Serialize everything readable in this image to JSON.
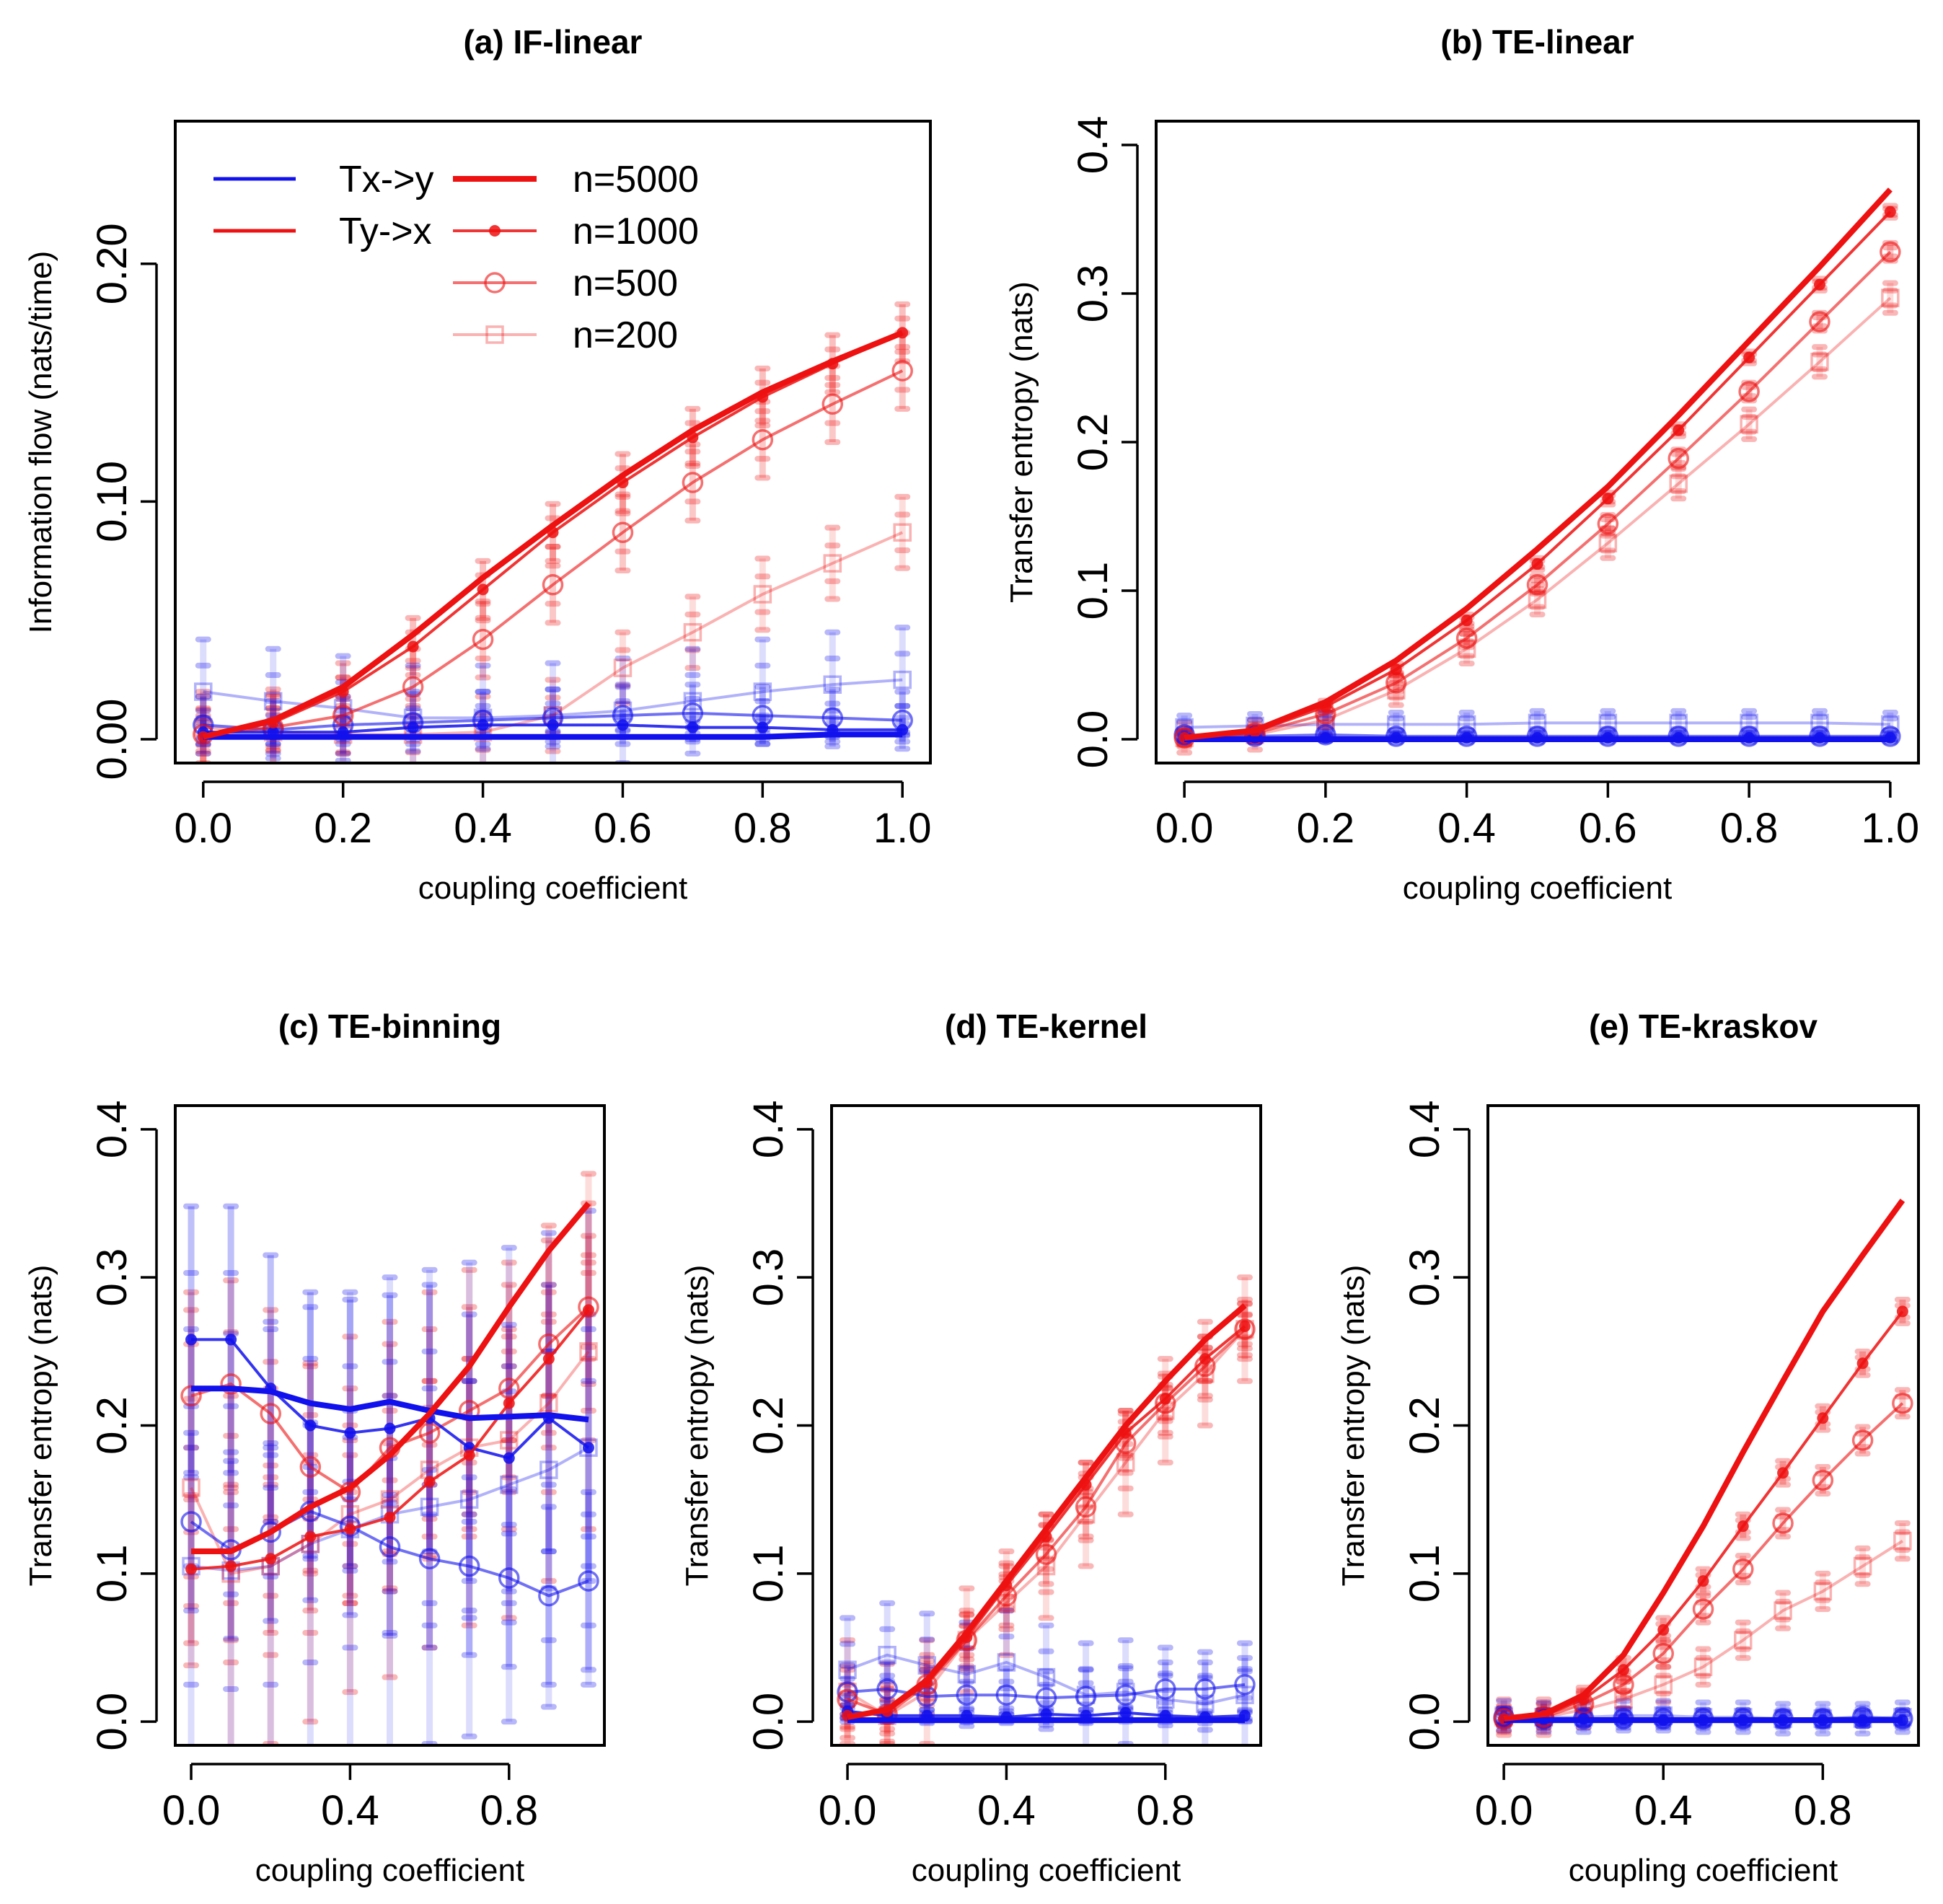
{
  "colors": {
    "red": "#ee1111",
    "blue": "#1111ee",
    "axis": "#000000"
  },
  "legend": {
    "direction_labels": [
      "Tx->y",
      "Ty->x"
    ],
    "size_labels": [
      "n=5000",
      "n=1000",
      "n=500",
      "n=200"
    ]
  },
  "chart_data": [
    {
      "id": "a",
      "type": "line",
      "title": "(a) IF-linear",
      "xlabel": "coupling coefficient",
      "ylabel": "Information flow (nats/time)",
      "xlim": [
        0,
        1
      ],
      "ylim": [
        0,
        0.25
      ],
      "xticks": [
        "0.0",
        "0.2",
        "0.4",
        "0.6",
        "0.8",
        "1.0"
      ],
      "yticks": [
        "0.00",
        "0.10",
        "0.20"
      ],
      "x": [
        0,
        0.1,
        0.2,
        0.3,
        0.4,
        0.5,
        0.6,
        0.7,
        0.8,
        0.9,
        1.0
      ],
      "series": [
        {
          "name": "Ty->x n=5000",
          "values": [
            0.001,
            0.008,
            0.022,
            0.044,
            0.068,
            0.09,
            0.111,
            0.13,
            0.146,
            0.159,
            0.171
          ]
        },
        {
          "name": "Ty->x n=1000",
          "values": [
            0.001,
            0.007,
            0.02,
            0.039,
            0.063,
            0.087,
            0.108,
            0.127,
            0.144,
            0.158,
            0.171
          ],
          "err": 0.012
        },
        {
          "name": "Ty->x n=500",
          "values": [
            0.002,
            0.005,
            0.01,
            0.022,
            0.042,
            0.065,
            0.087,
            0.108,
            0.126,
            0.141,
            0.155
          ],
          "err": 0.016
        },
        {
          "name": "Ty->x n=200",
          "values": [
            0.005,
            0.003,
            0.002,
            0.002,
            0.003,
            0.01,
            0.03,
            0.045,
            0.061,
            0.074,
            0.087
          ],
          "err": 0.015
        },
        {
          "name": "Tx->y n=5000",
          "values": [
            0.001,
            0.001,
            0.001,
            0.001,
            0.001,
            0.001,
            0.001,
            0.001,
            0.001,
            0.002,
            0.002
          ]
        },
        {
          "name": "Tx->y n=1000",
          "values": [
            0.003,
            0.003,
            0.003,
            0.005,
            0.006,
            0.006,
            0.006,
            0.005,
            0.005,
            0.004,
            0.004
          ],
          "err": 0.005
        },
        {
          "name": "Tx->y n=500",
          "values": [
            0.006,
            0.004,
            0.006,
            0.007,
            0.008,
            0.009,
            0.01,
            0.011,
            0.01,
            0.009,
            0.008
          ],
          "err": 0.012
        },
        {
          "name": "Tx->y n=200",
          "values": [
            0.02,
            0.016,
            0.013,
            0.009,
            0.009,
            0.01,
            0.012,
            0.016,
            0.02,
            0.023,
            0.025
          ],
          "err": 0.022
        }
      ]
    },
    {
      "id": "b",
      "type": "line",
      "title": "(b) TE-linear",
      "xlabel": "coupling coefficient",
      "ylabel": "Transfer entropy (nats)",
      "xlim": [
        0,
        1
      ],
      "ylim": [
        0,
        0.4
      ],
      "xticks": [
        "0.0",
        "0.2",
        "0.4",
        "0.6",
        "0.8",
        "1.0"
      ],
      "yticks": [
        "0.0",
        "0.1",
        "0.2",
        "0.3",
        "0.4"
      ],
      "x": [
        0,
        0.1,
        0.2,
        0.3,
        0.4,
        0.5,
        0.6,
        0.7,
        0.8,
        0.9,
        1.0
      ],
      "series": [
        {
          "name": "Ty->x n=5000",
          "values": [
            0.001,
            0.006,
            0.025,
            0.053,
            0.088,
            0.128,
            0.17,
            0.218,
            0.268,
            0.318,
            0.37
          ]
        },
        {
          "name": "Ty->x n=1000",
          "values": [
            0.001,
            0.005,
            0.022,
            0.047,
            0.08,
            0.118,
            0.162,
            0.208,
            0.257,
            0.306,
            0.355
          ],
          "err": 0.004
        },
        {
          "name": "Ty->x n=500",
          "values": [
            0.001,
            0.004,
            0.017,
            0.038,
            0.068,
            0.104,
            0.145,
            0.189,
            0.234,
            0.281,
            0.328
          ],
          "err": 0.006
        },
        {
          "name": "Ty->x n=200",
          "values": [
            0.001,
            0.003,
            0.013,
            0.033,
            0.061,
            0.094,
            0.132,
            0.172,
            0.212,
            0.254,
            0.297
          ],
          "err": 0.01
        },
        {
          "name": "Tx->y n=5000",
          "values": [
            0,
            0,
            0,
            0,
            0,
            0,
            0,
            0,
            0,
            0,
            0
          ]
        },
        {
          "name": "Tx->y n=1000",
          "values": [
            0.001,
            0.001,
            0.001,
            0.001,
            0.001,
            0.001,
            0.001,
            0.001,
            0.001,
            0.001,
            0.001
          ],
          "err": 0.002
        },
        {
          "name": "Tx->y n=500",
          "values": [
            0.003,
            0.002,
            0.003,
            0.002,
            0.002,
            0.002,
            0.002,
            0.002,
            0.002,
            0.002,
            0.002
          ],
          "err": 0.004
        },
        {
          "name": "Tx->y n=200",
          "values": [
            0.008,
            0.009,
            0.01,
            0.01,
            0.01,
            0.011,
            0.011,
            0.011,
            0.011,
            0.011,
            0.01
          ],
          "err": 0.008
        }
      ]
    },
    {
      "id": "c",
      "type": "line",
      "title": "(c) TE-binning",
      "xlabel": "coupling coefficient",
      "ylabel": "Transfer entropy (nats)",
      "xlim": [
        0,
        1
      ],
      "ylim": [
        0,
        0.4
      ],
      "xticks": [
        "0.0",
        "0.4",
        "0.8"
      ],
      "yticks": [
        "0.0",
        "0.1",
        "0.2",
        "0.3",
        "0.4"
      ],
      "x": [
        0,
        0.1,
        0.2,
        0.3,
        0.4,
        0.5,
        0.6,
        0.7,
        0.8,
        0.9,
        1.0
      ],
      "series": [
        {
          "name": "Ty->x n=5000",
          "values": [
            0.115,
            0.115,
            0.128,
            0.145,
            0.158,
            0.18,
            0.208,
            0.24,
            0.28,
            0.318,
            0.35
          ]
        },
        {
          "name": "Ty->x n=1000",
          "values": [
            0.103,
            0.105,
            0.11,
            0.125,
            0.13,
            0.138,
            0.162,
            0.18,
            0.215,
            0.245,
            0.278
          ],
          "err": 0.05
        },
        {
          "name": "Ty->x n=500",
          "values": [
            0.22,
            0.228,
            0.208,
            0.172,
            0.155,
            0.185,
            0.195,
            0.21,
            0.225,
            0.255,
            0.28
          ],
          "err": 0.07
        },
        {
          "name": "Ty->x n=200",
          "values": [
            0.158,
            0.1,
            0.105,
            0.12,
            0.14,
            0.15,
            0.17,
            0.185,
            0.19,
            0.215,
            0.25
          ],
          "err": 0.12
        },
        {
          "name": "Tx->y n=5000",
          "values": [
            0.225,
            0.225,
            0.223,
            0.215,
            0.211,
            0.216,
            0.21,
            0.205,
            0.206,
            0.207,
            0.204
          ]
        },
        {
          "name": "Tx->y n=1000",
          "values": [
            0.258,
            0.258,
            0.225,
            0.2,
            0.195,
            0.198,
            0.205,
            0.185,
            0.178,
            0.205,
            0.185
          ],
          "err": 0.09
        },
        {
          "name": "Tx->y n=500",
          "values": [
            0.135,
            0.116,
            0.128,
            0.142,
            0.132,
            0.118,
            0.11,
            0.105,
            0.097,
            0.085,
            0.095
          ],
          "err": 0.06
        },
        {
          "name": "Tx->y n=200",
          "values": [
            0.105,
            0.102,
            0.105,
            0.12,
            0.13,
            0.14,
            0.145,
            0.15,
            0.16,
            0.17,
            0.185
          ],
          "err": 0.16
        }
      ]
    },
    {
      "id": "d",
      "type": "line",
      "title": "(d) TE-kernel",
      "xlabel": "coupling coefficient",
      "ylabel": "Transfer entropy (nats)",
      "xlim": [
        0,
        1
      ],
      "ylim": [
        0,
        0.4
      ],
      "xticks": [
        "0.0",
        "0.4",
        "0.8"
      ],
      "yticks": [
        "0.0",
        "0.1",
        "0.2",
        "0.3",
        "0.4"
      ],
      "x": [
        0,
        0.1,
        0.2,
        0.3,
        0.4,
        0.5,
        0.6,
        0.7,
        0.8,
        0.9,
        1.0
      ],
      "series": [
        {
          "name": "Ty->x n=5000",
          "values": [
            0.003,
            0.008,
            0.028,
            0.06,
            0.095,
            0.13,
            0.165,
            0.2,
            0.23,
            0.258,
            0.281
          ]
        },
        {
          "name": "Ty->x n=1000",
          "values": [
            0.004,
            0.007,
            0.026,
            0.057,
            0.092,
            0.125,
            0.16,
            0.195,
            0.218,
            0.245,
            0.267
          ],
          "err": 0.015
        },
        {
          "name": "Ty->x n=500",
          "values": [
            0.015,
            0.005,
            0.025,
            0.055,
            0.085,
            0.113,
            0.145,
            0.188,
            0.215,
            0.24,
            0.265
          ],
          "err": 0.02
        },
        {
          "name": "Ty->x n=200",
          "values": [
            0.02,
            0.004,
            0.02,
            0.055,
            0.08,
            0.105,
            0.14,
            0.175,
            0.21,
            0.235,
            0.265
          ],
          "err": 0.035
        },
        {
          "name": "Tx->y n=5000",
          "values": [
            0.001,
            0.001,
            0.001,
            0.001,
            0.001,
            0.001,
            0.001,
            0.001,
            0.001,
            0.001,
            0.001
          ]
        },
        {
          "name": "Tx->y n=1000",
          "values": [
            0.007,
            0.004,
            0.004,
            0.004,
            0.003,
            0.005,
            0.004,
            0.006,
            0.004,
            0.003,
            0.004
          ],
          "err": 0.004
        },
        {
          "name": "Tx->y n=500",
          "values": [
            0.02,
            0.022,
            0.017,
            0.018,
            0.018,
            0.016,
            0.017,
            0.018,
            0.022,
            0.022,
            0.025
          ],
          "err": 0.018
        },
        {
          "name": "Tx->y n=200",
          "values": [
            0.035,
            0.045,
            0.038,
            0.032,
            0.04,
            0.03,
            0.018,
            0.02,
            0.015,
            0.012,
            0.018
          ],
          "err": 0.035
        }
      ]
    },
    {
      "id": "e",
      "type": "line",
      "title": "(e) TE-kraskov",
      "xlabel": "coupling coefficient",
      "ylabel": "Transfer entropy (nats)",
      "xlim": [
        0,
        1
      ],
      "ylim": [
        0,
        0.4
      ],
      "xticks": [
        "0.0",
        "0.4",
        "0.8"
      ],
      "yticks": [
        "0.0",
        "0.1",
        "0.2",
        "0.3",
        "0.4"
      ],
      "x": [
        0,
        0.1,
        0.2,
        0.3,
        0.4,
        0.5,
        0.6,
        0.7,
        0.8,
        0.9,
        1.0
      ],
      "series": [
        {
          "name": "Ty->x n=5000",
          "values": [
            0.002,
            0.005,
            0.018,
            0.045,
            0.087,
            0.132,
            0.182,
            0.23,
            0.277,
            0.315,
            0.352
          ]
        },
        {
          "name": "Ty->x n=1000",
          "values": [
            0.002,
            0.004,
            0.015,
            0.035,
            0.062,
            0.095,
            0.132,
            0.168,
            0.205,
            0.242,
            0.277
          ],
          "err": 0.008
        },
        {
          "name": "Ty->x n=500",
          "values": [
            0.002,
            0.003,
            0.012,
            0.025,
            0.046,
            0.076,
            0.103,
            0.134,
            0.163,
            0.19,
            0.215
          ],
          "err": 0.009
        },
        {
          "name": "Ty->x n=200",
          "values": [
            0.003,
            0.003,
            0.008,
            0.015,
            0.025,
            0.037,
            0.055,
            0.075,
            0.088,
            0.105,
            0.122
          ],
          "err": 0.012
        },
        {
          "name": "Tx->y n=5000",
          "values": [
            0.001,
            0.001,
            0.001,
            0.001,
            0.001,
            0.001,
            0.001,
            0.001,
            0.001,
            0.001,
            0.001
          ]
        },
        {
          "name": "Tx->y n=1000",
          "values": [
            0.002,
            0.002,
            0.002,
            0.002,
            0.001,
            0.001,
            0.001,
            0.001,
            0.001,
            0.001,
            0.001
          ],
          "err": 0.004
        },
        {
          "name": "Tx->y n=500",
          "values": [
            0.003,
            0.002,
            0.002,
            0.002,
            0.002,
            0.002,
            0.002,
            0.002,
            0.002,
            0.003,
            0.002
          ],
          "err": 0.006
        },
        {
          "name": "Tx->y n=200",
          "values": [
            0.004,
            0.003,
            0.003,
            0.004,
            0.004,
            0.003,
            0.003,
            0.002,
            0.002,
            0.002,
            0.003
          ],
          "err": 0.01
        }
      ]
    }
  ]
}
